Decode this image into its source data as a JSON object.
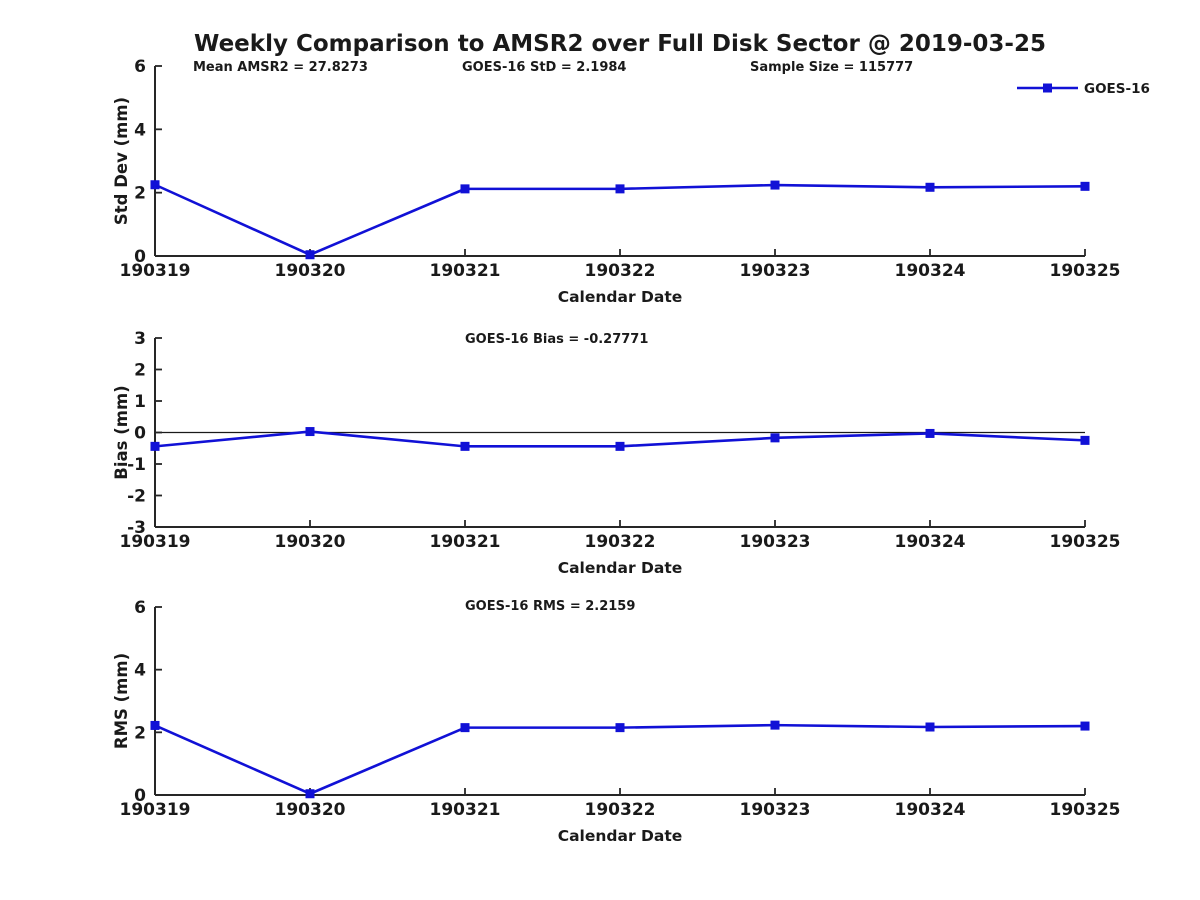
{
  "title": "Weekly Comparison to AMSR2 over Full Disk Sector @ 2019-03-25",
  "colors": {
    "series_line": "#1111d6",
    "axis": "#262626",
    "zero_line": "#1a1a1a",
    "text": "#1a1a1a",
    "background": "#ffffff"
  },
  "legend": {
    "label": "GOES-16",
    "position": "top-right"
  },
  "chart_data": [
    {
      "id": "stddev",
      "type": "line",
      "title": "",
      "categories": [
        "190319",
        "190320",
        "190321",
        "190322",
        "190323",
        "190324",
        "190325"
      ],
      "series": [
        {
          "name": "GOES-16",
          "values": [
            2.25,
            0.04,
            2.12,
            2.12,
            2.24,
            2.17,
            2.2
          ]
        }
      ],
      "xlabel": "Calendar Date",
      "ylabel": "Std Dev (mm)",
      "ylim": [
        0,
        6
      ],
      "yticks": [
        0,
        2,
        4,
        6
      ],
      "grid": false,
      "zero_line": false,
      "marker": "square",
      "annotations": [
        "Mean AMSR2 = 27.8273",
        "GOES-16 StD = 2.1984",
        "Sample Size = 115777"
      ],
      "legend": {
        "label": "GOES-16",
        "position": "top-right"
      }
    },
    {
      "id": "bias",
      "type": "line",
      "title": "",
      "categories": [
        "190319",
        "190320",
        "190321",
        "190322",
        "190323",
        "190324",
        "190325"
      ],
      "series": [
        {
          "name": "GOES-16",
          "values": [
            -0.44,
            0.03,
            -0.44,
            -0.44,
            -0.17,
            -0.03,
            -0.25
          ]
        }
      ],
      "xlabel": "Calendar Date",
      "ylabel": "Bias (mm)",
      "ylim": [
        -3,
        3
      ],
      "yticks": [
        -3,
        -2,
        -1,
        0,
        1,
        2,
        3
      ],
      "grid": false,
      "zero_line": true,
      "marker": "square",
      "annotations": [
        "GOES-16 Bias  = -0.27771"
      ]
    },
    {
      "id": "rms",
      "type": "line",
      "title": "",
      "categories": [
        "190319",
        "190320",
        "190321",
        "190322",
        "190323",
        "190324",
        "190325"
      ],
      "series": [
        {
          "name": "GOES-16",
          "values": [
            2.22,
            0.04,
            2.15,
            2.15,
            2.23,
            2.17,
            2.2
          ]
        }
      ],
      "xlabel": "Calendar Date",
      "ylabel": "RMS (mm)",
      "ylim": [
        0,
        6
      ],
      "yticks": [
        0,
        2,
        4,
        6
      ],
      "grid": false,
      "zero_line": false,
      "marker": "square",
      "annotations": [
        "GOES-16 RMS = 2.2159"
      ]
    }
  ]
}
